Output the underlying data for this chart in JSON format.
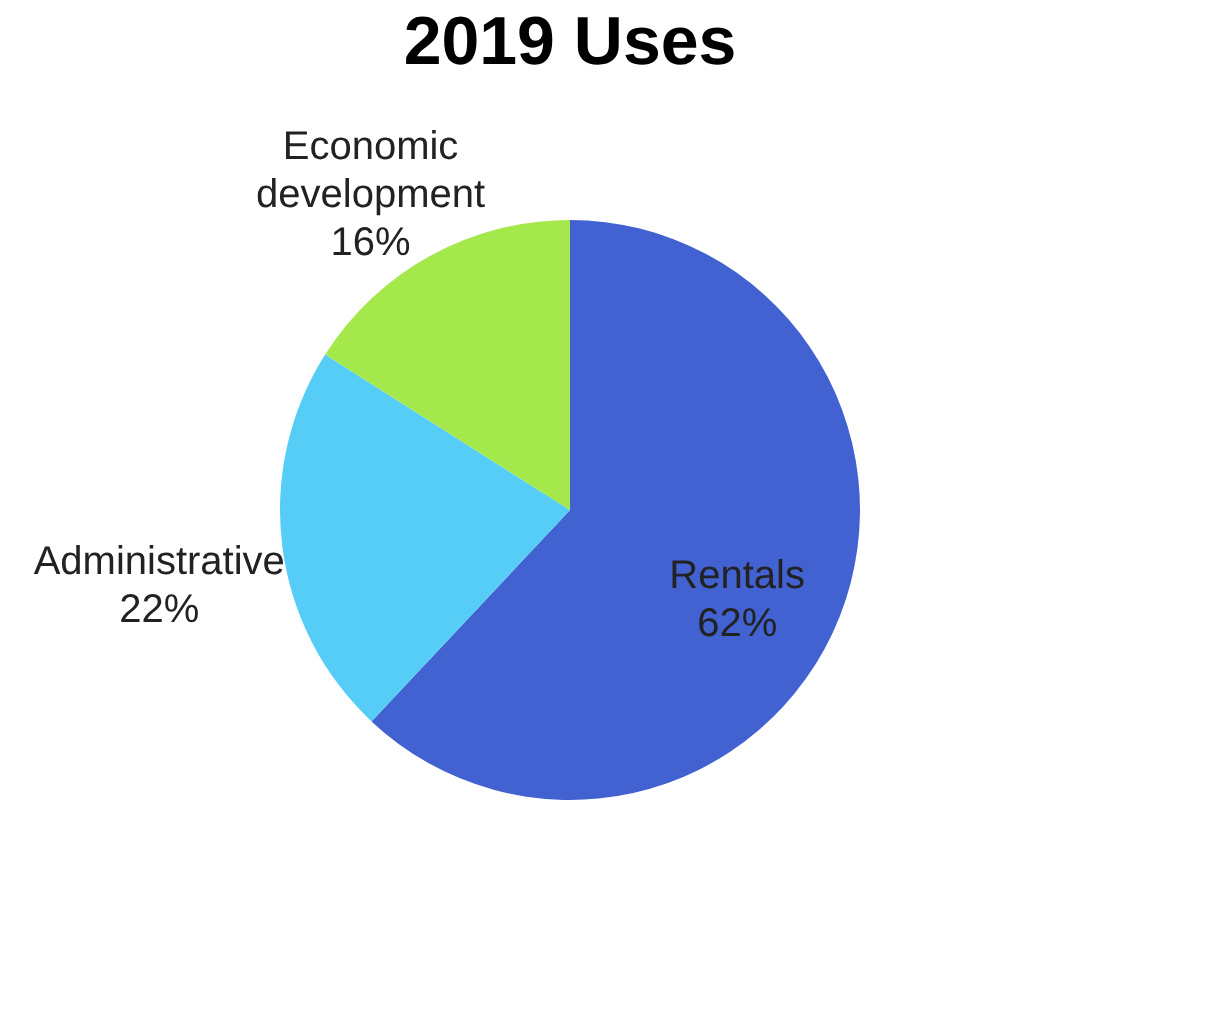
{
  "chart_data": {
    "type": "pie",
    "title": "2019 Uses",
    "categories": [
      "Rentals",
      "Administrative",
      "Economic development"
    ],
    "values": [
      62,
      22,
      16
    ],
    "colors": [
      "#4262d2",
      "#55cdf6",
      "#a4e84c"
    ],
    "value_labels": [
      "62%",
      "22%",
      "16%"
    ],
    "legend": false
  }
}
